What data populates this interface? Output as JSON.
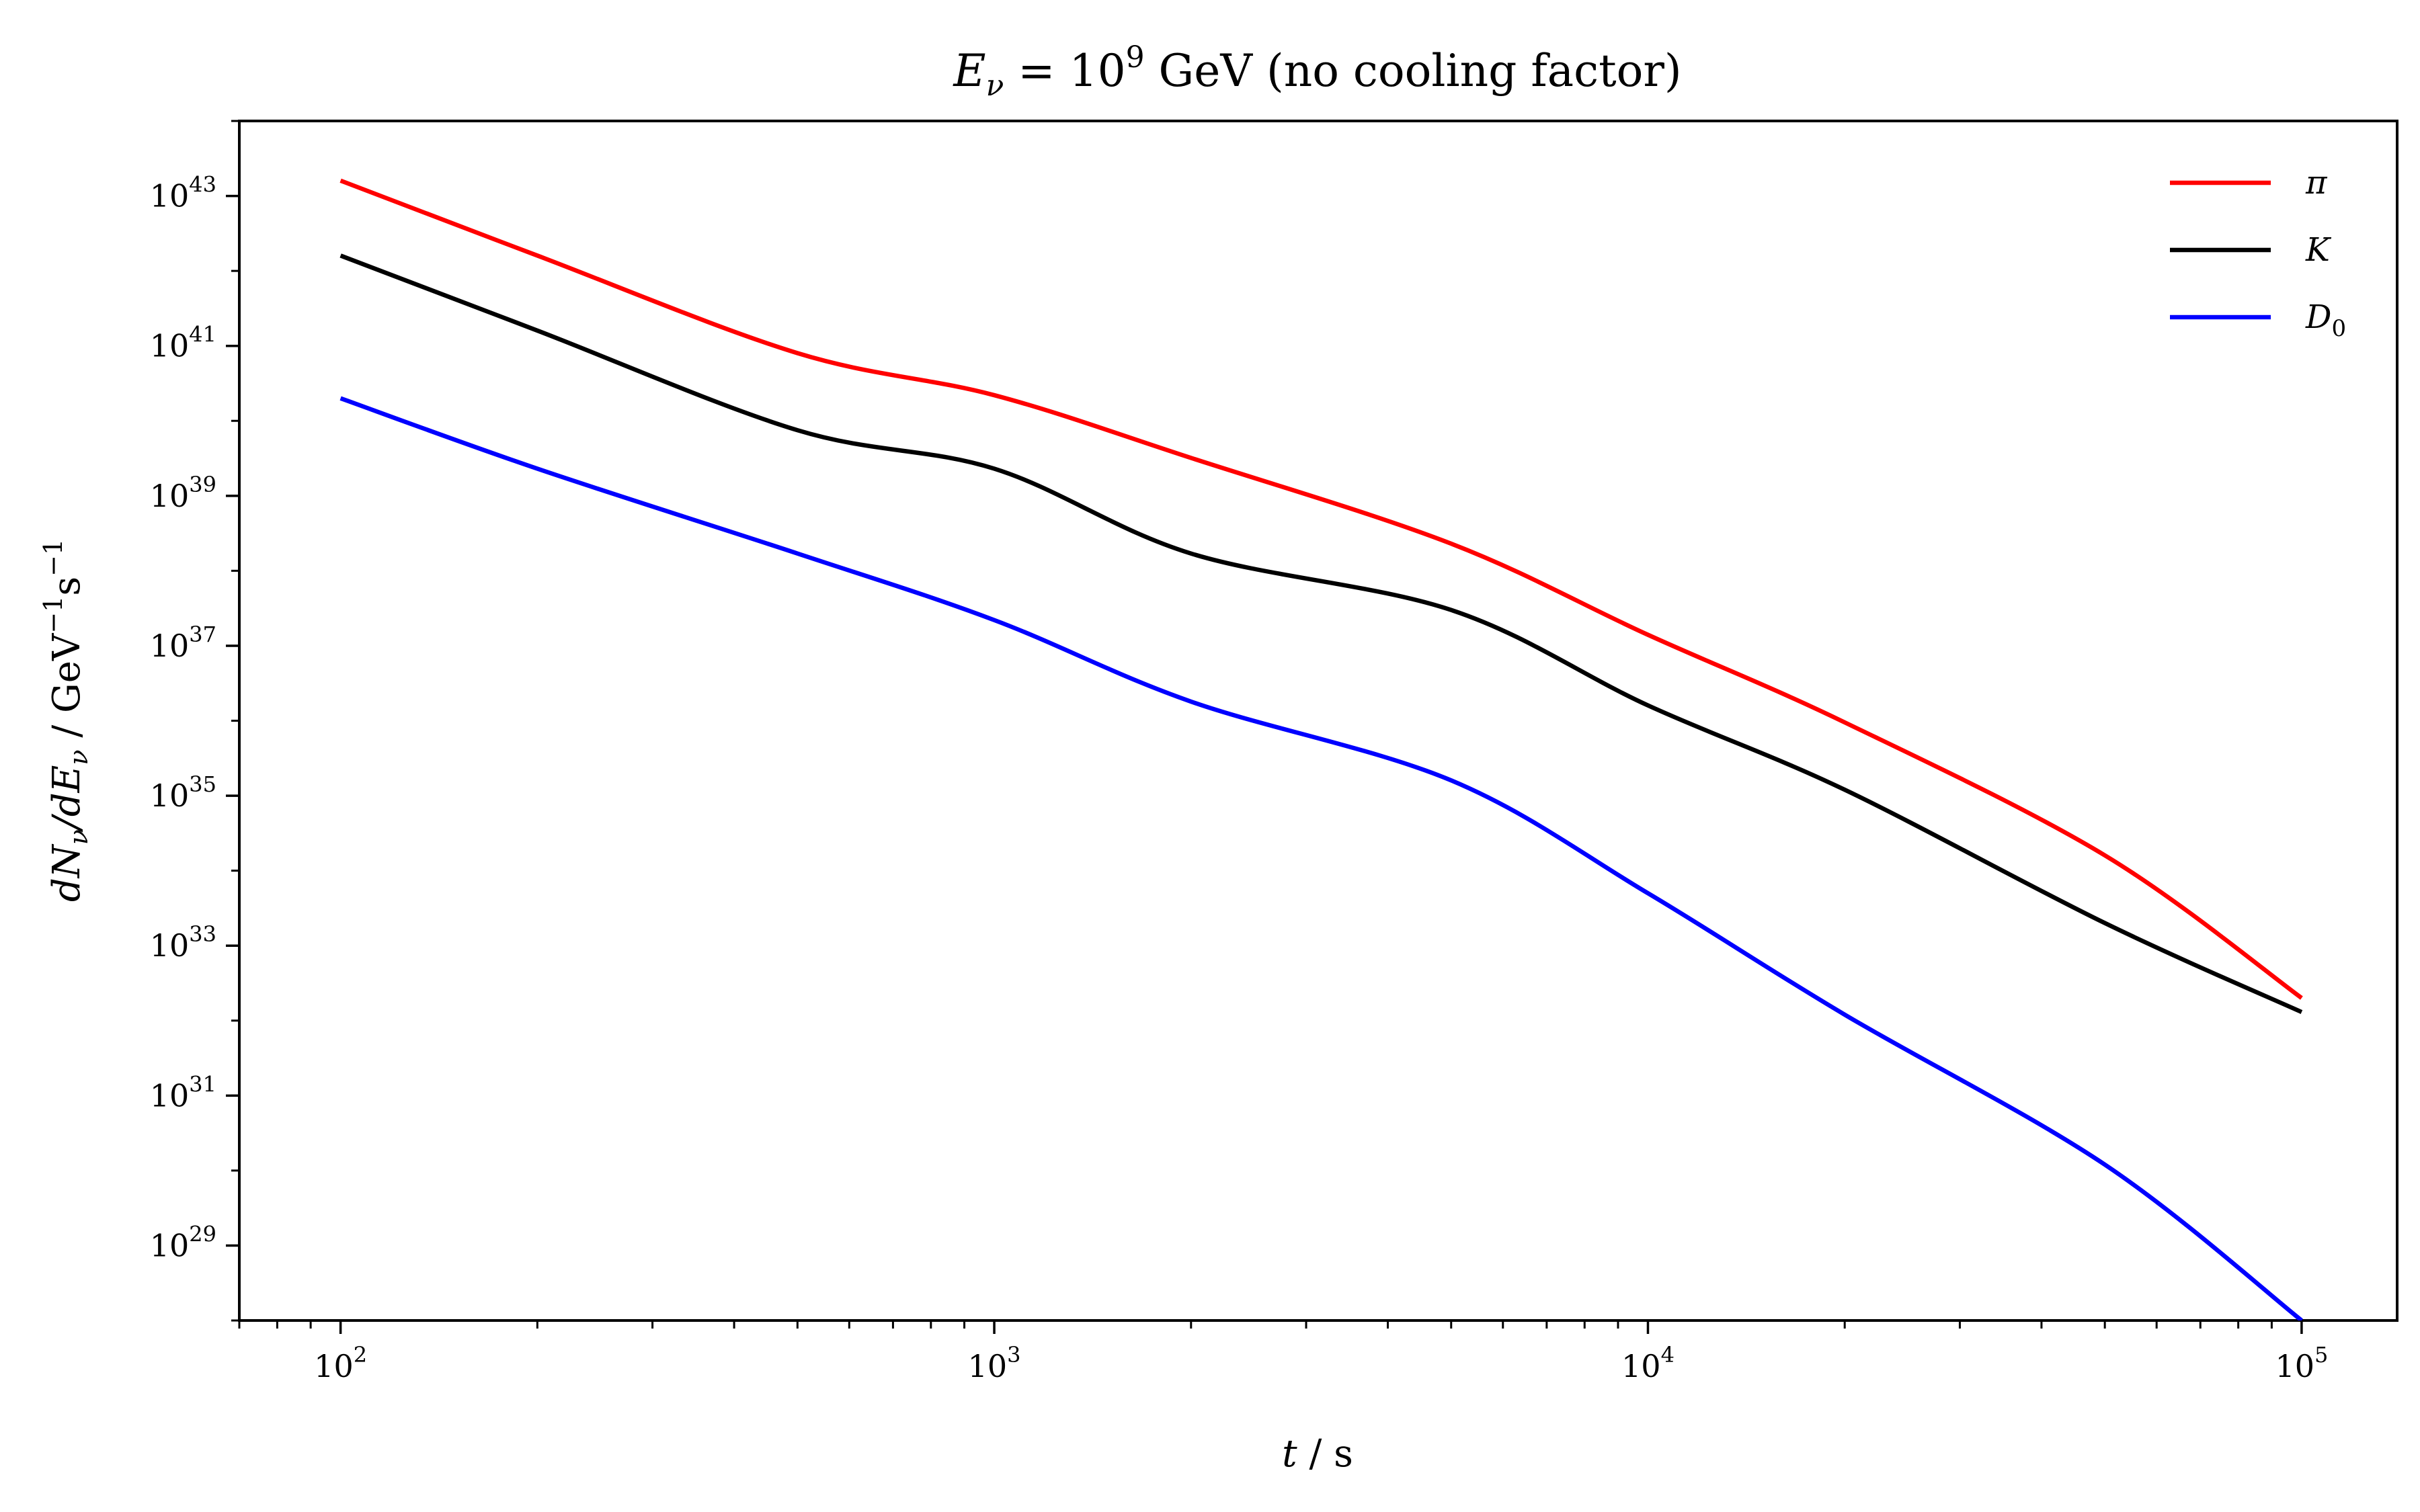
{
  "chart_data": {
    "type": "line",
    "title": "E_ν = 10^9 GeV (no cooling factor)",
    "title_parts": {
      "lhs": "E",
      "lhs_sub": "ν",
      "eq": " = 10",
      "exp": "9",
      "rest": " GeV (no cooling factor)"
    },
    "xlabel": "t / s",
    "xlabel_parts": {
      "var": "t",
      "rest": " / s"
    },
    "ylabel": "dN_ν/dE_ν / GeV^-1 s^-1",
    "ylabel_parts": {
      "num": "dN",
      "num_sub": "ν",
      "slash": "/",
      "den": "dE",
      "den_sub": "ν",
      "mid": " / GeV",
      "exp1": "−1",
      "s": "s",
      "exp2": "−1"
    },
    "xscale": "log",
    "yscale": "log",
    "xlim": [
      70,
      140000
    ],
    "ylim": [
      1e+28,
      1e+44
    ],
    "xticks": [
      {
        "value": 100,
        "base": "10",
        "exp": "2"
      },
      {
        "value": 1000,
        "base": "10",
        "exp": "3"
      },
      {
        "value": 10000,
        "base": "10",
        "exp": "4"
      },
      {
        "value": 100000,
        "base": "10",
        "exp": "5"
      }
    ],
    "yticks": [
      {
        "value": 1e+29,
        "base": "10",
        "exp": "29"
      },
      {
        "value": 1e+31,
        "base": "10",
        "exp": "31"
      },
      {
        "value": 1e+33,
        "base": "10",
        "exp": "33"
      },
      {
        "value": 1e+35,
        "base": "10",
        "exp": "35"
      },
      {
        "value": 1e+37,
        "base": "10",
        "exp": "37"
      },
      {
        "value": 1e+39,
        "base": "10",
        "exp": "39"
      },
      {
        "value": 1e+41,
        "base": "10",
        "exp": "41"
      },
      {
        "value": 1e+43,
        "base": "10",
        "exp": "43"
      }
    ],
    "grid": false,
    "legend": {
      "position": "top-right"
    },
    "series": [
      {
        "name": "π",
        "label": {
          "main": "π",
          "sub": ""
        },
        "color": "#ff0000",
        "x": [
          100,
          200,
          500,
          1000,
          2000,
          5000,
          10000,
          20000,
          50000,
          100000
        ],
        "y": [
          1.6e+43,
          1.6e+42,
          8e+40,
          2.2e+40,
          3.2e+39,
          2.3e+38,
          1.4e+37,
          9.5e+35,
          1.6e+34,
          2e+32
        ]
      },
      {
        "name": "K",
        "label": {
          "main": "K",
          "sub": ""
        },
        "color": "#000000",
        "x": [
          100,
          200,
          500,
          1000,
          2000,
          5000,
          10000,
          20000,
          50000,
          100000
        ],
        "y": [
          1.6e+42,
          1.6e+41,
          7.5e+39,
          2.3e+39,
          1.7e+38,
          3e+37,
          1.6e+36,
          1.2e+35,
          2e+33,
          1.3e+32
        ]
      },
      {
        "name": "D_0",
        "label": {
          "main": "D",
          "sub": "0"
        },
        "color": "#0000ff",
        "x": [
          100,
          200,
          500,
          1000,
          2000,
          5000,
          10000,
          20000,
          50000,
          100000
        ],
        "y": [
          2e+40,
          2.3e+39,
          1.7e+38,
          2.2e+37,
          1.8e+36,
          1.6e+35,
          5e+33,
          1.2e+32,
          1.2e+30,
          1e+28
        ]
      }
    ]
  }
}
